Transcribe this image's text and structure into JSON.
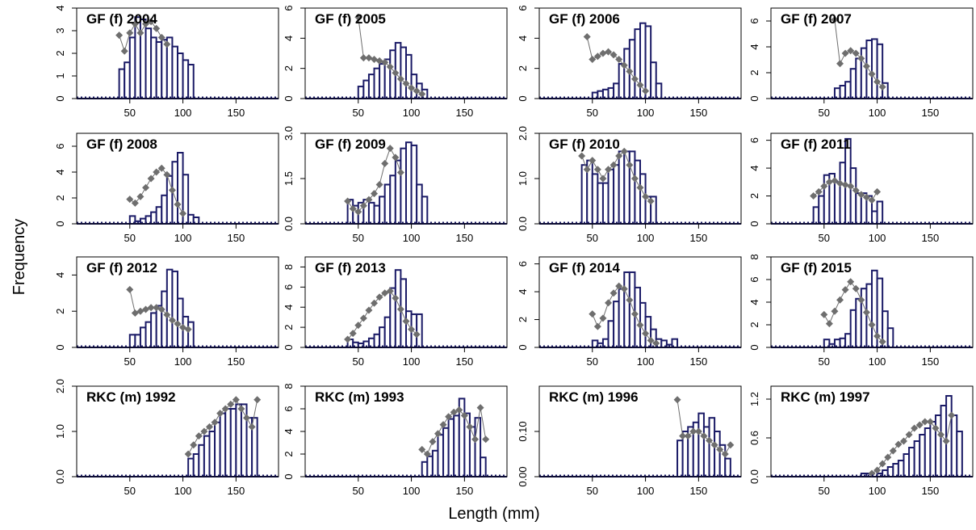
{
  "figure": {
    "xlabel": "Length (mm)",
    "ylabel": "Frequency"
  },
  "colors": {
    "bar_fill": "#ffffff",
    "bar_edge": "#1a1a66",
    "observed": "#1a1a66",
    "predicted": "#6e6e6e",
    "frame": "#000000"
  },
  "chart_data": [
    {
      "type": "bar",
      "title": "GF (f) 2004",
      "xlim": [
        0,
        190
      ],
      "ylim": [
        0,
        4
      ],
      "yticks": [
        0,
        1,
        2,
        3,
        4
      ],
      "xticks": [
        50,
        100,
        150
      ],
      "bins": {
        "start": 40,
        "width": 5,
        "values": [
          1.3,
          1.6,
          2.7,
          3.6,
          3.5,
          3.1,
          2.7,
          2.5,
          2.6,
          2.7,
          2.3,
          2.0,
          1.7,
          1.5
        ]
      },
      "predicted": {
        "x": [
          40,
          45,
          50,
          55,
          60,
          65,
          70,
          75,
          80,
          85
        ],
        "y": [
          2.8,
          2.1,
          2.9,
          3.3,
          2.9,
          3.3,
          3.4,
          3.1,
          2.7,
          2.4
        ]
      }
    },
    {
      "type": "bar",
      "title": "GF (f) 2005",
      "xlim": [
        0,
        190
      ],
      "ylim": [
        0,
        6
      ],
      "yticks": [
        0,
        2,
        4,
        6
      ],
      "xticks": [
        50,
        100,
        150
      ],
      "bins": {
        "start": 50,
        "width": 5,
        "values": [
          0.8,
          1.2,
          1.6,
          2.0,
          2.3,
          2.6,
          3.2,
          3.7,
          3.4,
          2.9,
          1.6,
          1.0,
          0.6
        ]
      },
      "predicted": {
        "x": [
          50,
          55,
          60,
          65,
          70,
          75,
          80,
          85,
          90,
          95,
          100,
          105,
          110
        ],
        "y": [
          5.4,
          2.7,
          2.7,
          2.6,
          2.5,
          2.4,
          2.1,
          1.7,
          1.3,
          1.0,
          0.7,
          0.5,
          0.3
        ]
      }
    },
    {
      "type": "bar",
      "title": "GF (f) 2006",
      "xlim": [
        0,
        190
      ],
      "ylim": [
        0,
        6
      ],
      "yticks": [
        0,
        2,
        4,
        6
      ],
      "xticks": [
        50,
        100,
        150
      ],
      "bins": {
        "start": 50,
        "width": 5,
        "values": [
          0.4,
          0.5,
          0.6,
          0.7,
          1.0,
          2.3,
          3.3,
          3.9,
          4.6,
          5.0,
          4.8,
          2.4,
          1.0
        ]
      },
      "predicted": {
        "x": [
          45,
          50,
          55,
          60,
          65,
          70,
          75,
          80,
          85,
          90,
          95,
          100
        ],
        "y": [
          4.1,
          2.6,
          2.8,
          3.0,
          3.1,
          2.9,
          2.6,
          2.2,
          1.8,
          1.3,
          0.9,
          0.5
        ]
      }
    },
    {
      "type": "bar",
      "title": "GF (f) 2007",
      "xlim": [
        0,
        190
      ],
      "ylim": [
        0,
        7
      ],
      "yticks": [
        0,
        2,
        4,
        6
      ],
      "xticks": [
        50,
        100,
        150
      ],
      "bins": {
        "start": 60,
        "width": 5,
        "values": [
          0.8,
          1.0,
          1.3,
          2.3,
          3.1,
          3.9,
          4.5,
          4.6,
          4.2,
          1.2
        ]
      },
      "predicted": {
        "x": [
          60,
          65,
          70,
          75,
          80,
          85,
          90,
          95,
          100,
          105
        ],
        "y": [
          6.1,
          2.7,
          3.5,
          3.7,
          3.5,
          3.1,
          2.5,
          1.9,
          1.3,
          0.9
        ]
      }
    },
    {
      "type": "bar",
      "title": "GF (f) 2008",
      "xlim": [
        0,
        190
      ],
      "ylim": [
        0,
        7
      ],
      "yticks": [
        0,
        2,
        4,
        6
      ],
      "xticks": [
        50,
        100,
        150
      ],
      "bins": {
        "start": 50,
        "width": 5,
        "values": [
          0.6,
          0.2,
          0.4,
          0.6,
          0.9,
          1.3,
          2.2,
          3.7,
          4.8,
          5.5,
          3.8,
          0.7,
          0.5
        ]
      },
      "predicted": {
        "x": [
          50,
          55,
          60,
          65,
          70,
          75,
          80,
          85,
          90,
          95,
          100
        ],
        "y": [
          1.9,
          1.6,
          2.1,
          2.8,
          3.5,
          4.0,
          4.3,
          3.8,
          2.6,
          1.5,
          0.8
        ]
      }
    },
    {
      "type": "bar",
      "title": "GF (f) 2009",
      "xlim": [
        0,
        190
      ],
      "ylim": [
        0,
        3.0
      ],
      "yticks": [
        0.0,
        1.5,
        3.0
      ],
      "yticklabels": [
        "0.0",
        "1.5",
        "3.0"
      ],
      "xticks": [
        50,
        100,
        150
      ],
      "bins": {
        "start": 40,
        "width": 5,
        "values": [
          0.8,
          0.6,
          0.7,
          0.8,
          0.7,
          0.6,
          0.9,
          1.3,
          1.6,
          2.1,
          2.5,
          2.7,
          2.6,
          1.3,
          0.9
        ]
      },
      "predicted": {
        "x": [
          40,
          45,
          50,
          55,
          60,
          65,
          70,
          75,
          80,
          85,
          90
        ],
        "y": [
          0.75,
          0.5,
          0.4,
          0.6,
          0.8,
          1.0,
          1.3,
          2.0,
          2.5,
          2.2,
          1.7
        ]
      }
    },
    {
      "type": "bar",
      "title": "GF (f) 2010",
      "xlim": [
        0,
        190
      ],
      "ylim": [
        0,
        2.0
      ],
      "yticks": [
        0.0,
        1.0,
        2.0
      ],
      "yticklabels": [
        "0.0",
        "1.0",
        "2.0"
      ],
      "xticks": [
        50,
        100,
        150
      ],
      "bins": {
        "start": 40,
        "width": 5,
        "values": [
          1.3,
          1.4,
          1.1,
          0.9,
          0.9,
          1.2,
          1.3,
          1.6,
          1.6,
          1.6,
          1.4,
          1.1,
          0.6,
          0.6
        ]
      },
      "predicted": {
        "x": [
          40,
          45,
          50,
          55,
          60,
          65,
          70,
          75,
          80,
          85,
          90,
          95,
          100,
          105
        ],
        "y": [
          1.5,
          1.2,
          1.4,
          1.2,
          1.0,
          1.2,
          1.3,
          1.5,
          1.6,
          1.3,
          1.0,
          0.8,
          0.6,
          0.5
        ]
      }
    },
    {
      "type": "bar",
      "title": "GF (f) 2011",
      "xlim": [
        0,
        190
      ],
      "ylim": [
        0,
        6.5
      ],
      "yticks": [
        0,
        2,
        4,
        6
      ],
      "xticks": [
        50,
        100,
        150
      ],
      "bins": {
        "start": 40,
        "width": 5,
        "values": [
          1.2,
          2.0,
          3.5,
          3.6,
          3.0,
          4.4,
          6.1,
          4.0,
          2.2,
          2.2,
          2.0,
          0.9,
          1.6
        ]
      },
      "predicted": {
        "x": [
          40,
          45,
          50,
          55,
          60,
          65,
          70,
          75,
          80,
          85,
          90,
          95,
          100
        ],
        "y": [
          2.0,
          2.3,
          2.7,
          3.0,
          3.1,
          2.9,
          2.8,
          2.7,
          2.4,
          2.1,
          1.9,
          1.7,
          2.3
        ]
      }
    },
    {
      "type": "bar",
      "title": "GF (f) 2012",
      "xlim": [
        0,
        190
      ],
      "ylim": [
        0,
        5
      ],
      "yticks": [
        0,
        2,
        4
      ],
      "xticks": [
        50,
        100,
        150
      ],
      "bins": {
        "start": 50,
        "width": 5,
        "values": [
          0.7,
          0.7,
          1.1,
          1.4,
          1.9,
          2.3,
          3.1,
          4.3,
          4.2,
          2.7,
          1.7,
          1.4
        ]
      },
      "predicted": {
        "x": [
          50,
          55,
          60,
          65,
          70,
          75,
          80,
          85,
          90,
          95,
          100,
          105
        ],
        "y": [
          3.2,
          1.9,
          2.0,
          2.1,
          2.2,
          2.2,
          2.1,
          1.8,
          1.5,
          1.3,
          1.1,
          1.0
        ]
      }
    },
    {
      "type": "bar",
      "title": "GF (f) 2013",
      "xlim": [
        0,
        190
      ],
      "ylim": [
        0,
        9
      ],
      "yticks": [
        0,
        2,
        4,
        6,
        8
      ],
      "xticks": [
        50,
        100,
        150
      ],
      "bins": {
        "start": 40,
        "width": 5,
        "values": [
          0.8,
          0.5,
          0.4,
          0.6,
          0.9,
          1.3,
          2.0,
          3.0,
          5.9,
          7.7,
          6.8,
          3.6,
          3.3,
          3.3
        ]
      },
      "predicted": {
        "x": [
          40,
          45,
          50,
          55,
          60,
          65,
          70,
          75,
          80,
          85,
          90,
          95,
          100,
          105
        ],
        "y": [
          0.8,
          1.4,
          2.2,
          2.9,
          3.7,
          4.4,
          5.0,
          5.4,
          5.6,
          4.9,
          3.8,
          2.6,
          1.8,
          1.3
        ]
      }
    },
    {
      "type": "bar",
      "title": "GF (f) 2014",
      "xlim": [
        0,
        190
      ],
      "ylim": [
        0,
        6.5
      ],
      "yticks": [
        0,
        2,
        4,
        6
      ],
      "xticks": [
        50,
        100,
        150
      ],
      "bins": {
        "start": 50,
        "width": 5,
        "values": [
          0.5,
          0.3,
          0.6,
          1.9,
          3.3,
          4.2,
          5.4,
          5.4,
          4.3,
          3.2,
          2.2,
          1.3,
          0.6,
          0.5,
          0.2,
          0.6
        ]
      },
      "predicted": {
        "x": [
          50,
          55,
          60,
          65,
          70,
          75,
          80,
          85,
          90,
          95,
          100,
          105,
          110
        ],
        "y": [
          2.4,
          1.5,
          2.1,
          3.2,
          3.9,
          4.4,
          4.2,
          3.4,
          2.4,
          1.6,
          1.0,
          0.5,
          0.3
        ]
      }
    },
    {
      "type": "bar",
      "title": "GF (f) 2015",
      "xlim": [
        0,
        190
      ],
      "ylim": [
        0,
        8
      ],
      "yticks": [
        0,
        2,
        4,
        6,
        8
      ],
      "xticks": [
        50,
        100,
        150
      ],
      "bins": {
        "start": 50,
        "width": 5,
        "values": [
          0.7,
          0.3,
          0.7,
          0.8,
          1.2,
          3.3,
          4.3,
          5.2,
          5.6,
          6.8,
          6.1,
          3.2,
          1.7
        ]
      },
      "predicted": {
        "x": [
          50,
          55,
          60,
          65,
          70,
          75,
          80,
          85,
          90,
          95,
          100,
          105
        ],
        "y": [
          2.9,
          2.1,
          3.2,
          4.2,
          5.1,
          5.8,
          5.2,
          4.2,
          3.1,
          2.0,
          1.0,
          0.5
        ]
      }
    },
    {
      "type": "bar",
      "title": "RKC (m) 1992",
      "xlim": [
        0,
        190
      ],
      "ylim": [
        0,
        2.0
      ],
      "yticks": [
        0.0,
        1.0,
        2.0
      ],
      "yticklabels": [
        "0.0",
        "1.0",
        "2.0"
      ],
      "xticks": [
        50,
        100,
        150
      ],
      "bins": {
        "start": 105,
        "width": 5,
        "values": [
          0.4,
          0.5,
          0.7,
          0.9,
          1.0,
          1.2,
          1.4,
          1.5,
          1.5,
          1.6,
          1.6,
          1.3,
          1.3
        ]
      },
      "predicted": {
        "x": [
          105,
          110,
          115,
          120,
          125,
          130,
          135,
          140,
          145,
          150,
          155,
          160,
          165,
          170
        ],
        "y": [
          0.5,
          0.7,
          0.9,
          1.0,
          1.1,
          1.2,
          1.4,
          1.5,
          1.6,
          1.7,
          1.5,
          1.3,
          1.1,
          1.7
        ]
      }
    },
    {
      "type": "bar",
      "title": "RKC (m) 1993",
      "xlim": [
        0,
        190
      ],
      "ylim": [
        0,
        8
      ],
      "yticks": [
        0,
        2,
        4,
        6,
        8
      ],
      "xticks": [
        50,
        100,
        150
      ],
      "bins": {
        "start": 110,
        "width": 5,
        "values": [
          1.3,
          1.8,
          2.3,
          3.7,
          4.3,
          5.1,
          5.4,
          6.9,
          5.6,
          4.4,
          5.2,
          1.7
        ]
      },
      "predicted": {
        "x": [
          110,
          115,
          120,
          125,
          130,
          135,
          140,
          145,
          150,
          155,
          160,
          165,
          170
        ],
        "y": [
          2.4,
          2.0,
          3.1,
          3.8,
          4.6,
          5.3,
          5.7,
          5.9,
          5.4,
          4.4,
          3.3,
          6.1,
          3.3
        ]
      }
    },
    {
      "type": "bar",
      "title": "RKC (m) 1996",
      "xlim": [
        0,
        190
      ],
      "ylim": [
        0,
        0.2
      ],
      "yticks": [
        0.0,
        0.1
      ],
      "yticklabels": [
        "0.00",
        "0.10"
      ],
      "xticks": [
        50,
        100,
        150
      ],
      "bins": {
        "start": 130,
        "width": 5,
        "values": [
          0.08,
          0.1,
          0.11,
          0.12,
          0.14,
          0.11,
          0.13,
          0.1,
          0.07,
          0.04
        ]
      },
      "predicted": {
        "x": [
          130,
          135,
          140,
          145,
          150,
          155,
          160,
          165,
          170,
          175,
          180
        ],
        "y": [
          0.17,
          0.09,
          0.09,
          0.1,
          0.1,
          0.09,
          0.08,
          0.07,
          0.06,
          0.05,
          0.07
        ]
      }
    },
    {
      "type": "bar",
      "title": "RKC (m) 1997",
      "xlim": [
        0,
        190
      ],
      "ylim": [
        0,
        1.4
      ],
      "yticks": [
        0.0,
        0.6,
        1.2
      ],
      "yticklabels": [
        "0.0",
        "0.6",
        "1.2"
      ],
      "xticks": [
        50,
        100,
        150
      ],
      "bins": {
        "start": 85,
        "width": 5,
        "values": [
          0.05,
          0.05,
          0.0,
          0.05,
          0.1,
          0.15,
          0.2,
          0.25,
          0.35,
          0.45,
          0.55,
          0.65,
          0.75,
          0.85,
          0.95,
          1.1,
          1.25,
          0.95,
          0.7
        ]
      },
      "predicted": {
        "x": [
          95,
          100,
          105,
          110,
          115,
          120,
          125,
          130,
          135,
          140,
          145,
          150,
          155,
          160,
          165,
          170
        ],
        "y": [
          0.05,
          0.1,
          0.2,
          0.3,
          0.4,
          0.5,
          0.55,
          0.65,
          0.75,
          0.8,
          0.85,
          0.85,
          0.75,
          0.65,
          0.55,
          0.95
        ]
      }
    }
  ]
}
